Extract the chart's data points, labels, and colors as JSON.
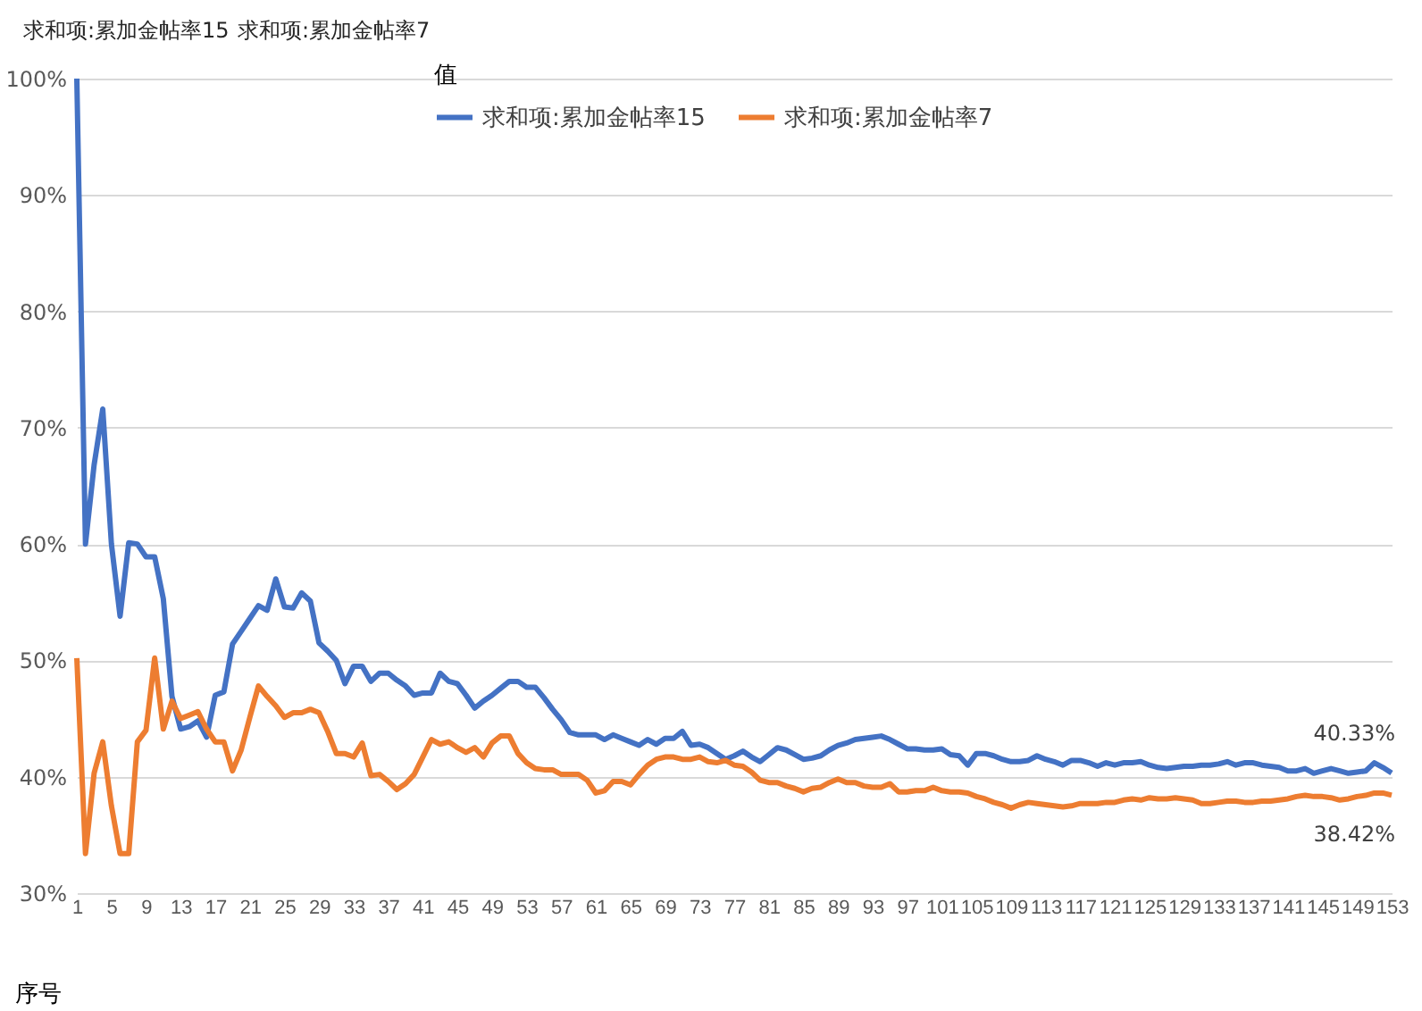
{
  "chart_data": {
    "type": "line",
    "annotations": [
      "求和项:累加金帖率15",
      "求和项:累加金帖率7"
    ],
    "xlabel": "序号",
    "legend_title": "值",
    "legend": "top",
    "grid": "y",
    "line_style": "solid",
    "ylim": [
      30,
      100
    ],
    "yticks": [
      {
        "value": 30,
        "label": "30%"
      },
      {
        "value": 40,
        "label": "40%"
      },
      {
        "value": 50,
        "label": "50%"
      },
      {
        "value": 60,
        "label": "60%"
      },
      {
        "value": 70,
        "label": "70%"
      },
      {
        "value": 80,
        "label": "80%"
      },
      {
        "value": 90,
        "label": "90%"
      },
      {
        "value": 100,
        "label": "100%"
      }
    ],
    "categories": [
      "1",
      null,
      null,
      null,
      "5",
      null,
      null,
      null,
      "9",
      null,
      null,
      null,
      "13",
      null,
      null,
      null,
      "17",
      null,
      null,
      null,
      "21",
      null,
      null,
      null,
      "25",
      null,
      null,
      null,
      "29",
      null,
      null,
      null,
      "33",
      null,
      null,
      null,
      "37",
      null,
      null,
      null,
      "41",
      null,
      null,
      null,
      "45",
      null,
      null,
      null,
      "49",
      null,
      null,
      null,
      "53",
      null,
      null,
      null,
      "57",
      null,
      null,
      null,
      "61",
      null,
      null,
      null,
      "65",
      null,
      null,
      null,
      "69",
      null,
      null,
      null,
      "73",
      null,
      null,
      null,
      "77",
      null,
      null,
      null,
      "81",
      null,
      null,
      null,
      "85",
      null,
      null,
      null,
      "89",
      null,
      null,
      null,
      "93",
      null,
      null,
      null,
      "97",
      null,
      null,
      null,
      "101",
      null,
      null,
      null,
      "105",
      null,
      null,
      null,
      "109",
      null,
      null,
      null,
      "113",
      null,
      null,
      null,
      "117",
      null,
      null,
      null,
      "121",
      null,
      null,
      null,
      "125",
      null,
      null,
      null,
      "129",
      null,
      null,
      null,
      "133",
      null,
      null,
      null,
      "137",
      null,
      null,
      null,
      "141",
      null,
      null,
      null,
      "145",
      null,
      null,
      null,
      "149",
      null,
      null,
      null,
      "153"
    ],
    "series": [
      {
        "name": "求和项:累加金帖率15",
        "color": "#4472c4",
        "values": [
          100,
          60,
          66.8,
          71.6,
          60,
          53.8,
          60.1,
          60,
          58.9,
          58.9,
          55.3,
          46.9,
          44.1,
          44.3,
          44.8,
          43.4,
          47,
          47.3,
          51.4,
          52.5,
          53.6,
          54.7,
          54.3,
          57,
          54.6,
          54.5,
          55.8,
          55.1,
          51.5,
          50.8,
          50,
          48,
          49.5,
          49.5,
          48.2,
          48.9,
          48.9,
          48.3,
          47.8,
          47,
          47.2,
          47.2,
          48.9,
          48.2,
          48,
          47,
          45.9,
          46.5,
          47,
          47.6,
          48.2,
          48.2,
          47.7,
          47.7,
          46.8,
          45.8,
          44.9,
          43.8,
          43.6,
          43.6,
          43.6,
          43.2,
          43.6,
          43.3,
          43,
          42.7,
          43.2,
          42.8,
          43.3,
          43.3,
          43.9,
          42.7,
          42.8,
          42.5,
          42,
          41.5,
          41.8,
          42.2,
          41.7,
          41.3,
          41.9,
          42.5,
          42.3,
          41.9,
          41.5,
          41.6,
          41.8,
          42.3,
          42.7,
          42.9,
          43.2,
          43.3,
          43.4,
          43.5,
          43.2,
          42.8,
          42.4,
          42.4,
          42.3,
          42.3,
          42.4,
          41.9,
          41.8,
          41,
          42,
          42,
          41.8,
          41.5,
          41.3,
          41.3,
          41.4,
          41.8,
          41.5,
          41.3,
          41,
          41.4,
          41.4,
          41.2,
          40.9,
          41.2,
          41,
          41.2,
          41.2,
          41.3,
          41,
          40.8,
          40.7,
          40.8,
          40.9,
          40.9,
          41,
          41,
          41.1,
          41.3,
          41,
          41.2,
          41.2,
          41,
          40.9,
          40.8,
          40.5,
          40.5,
          40.7,
          40.3,
          40.5,
          40.7,
          40.5,
          40.3,
          40.4,
          40.5,
          41.2,
          40.8,
          40.33
        ],
        "value_labels": [
          null,
          null,
          null,
          null,
          null,
          null,
          null,
          null,
          null,
          null,
          null,
          null,
          null,
          null,
          null,
          null,
          null,
          null,
          null,
          null,
          null,
          null,
          null,
          null,
          null,
          null,
          null,
          null,
          null,
          null,
          null,
          null,
          null,
          null,
          null,
          null,
          null,
          null,
          null,
          null,
          null,
          null,
          null,
          null,
          null,
          null,
          null,
          null,
          null,
          null,
          null,
          null,
          null,
          null,
          null,
          null,
          null,
          null,
          null,
          null,
          null,
          null,
          null,
          null,
          null,
          null,
          null,
          null,
          null,
          null,
          null,
          null,
          null,
          null,
          null,
          null,
          null,
          null,
          null,
          null,
          null,
          null,
          null,
          null,
          null,
          null,
          null,
          null,
          null,
          null,
          null,
          null,
          null,
          null,
          null,
          null,
          null,
          null,
          null,
          null,
          null,
          null,
          null,
          null,
          null,
          null,
          null,
          null,
          null,
          null,
          null,
          null,
          null,
          null,
          null,
          null,
          null,
          null,
          null,
          null,
          null,
          null,
          null,
          null,
          null,
          null,
          null,
          null,
          null,
          null,
          null,
          null,
          null,
          null,
          null,
          null,
          null,
          null,
          null,
          null,
          null,
          null,
          null,
          null,
          null,
          null,
          null,
          null,
          null,
          null,
          null,
          null,
          "40.33%"
        ]
      },
      {
        "name": "求和项:累加金帖率7",
        "color": "#ed7d31",
        "values": [
          50.2,
          33.4,
          40.3,
          43,
          37.5,
          33.4,
          33.4,
          43,
          44,
          50.2,
          44.1,
          46.5,
          45,
          45.3,
          45.6,
          44.1,
          43,
          43,
          40.5,
          42.3,
          45.1,
          47.8,
          46.9,
          46.1,
          45.1,
          45.5,
          45.5,
          45.8,
          45.5,
          43.9,
          42,
          42,
          41.7,
          42.9,
          40.1,
          40.2,
          39.6,
          38.9,
          39.4,
          40.2,
          41.7,
          43.2,
          42.8,
          43,
          42.5,
          42.1,
          42.5,
          41.7,
          42.9,
          43.5,
          43.5,
          42,
          41.2,
          40.7,
          40.6,
          40.6,
          40.2,
          40.2,
          40.2,
          39.7,
          38.6,
          38.8,
          39.6,
          39.6,
          39.3,
          40.2,
          41,
          41.5,
          41.7,
          41.7,
          41.5,
          41.5,
          41.7,
          41.3,
          41.2,
          41.4,
          41,
          40.9,
          40.4,
          39.7,
          39.5,
          39.5,
          39.2,
          39,
          38.7,
          39,
          39.1,
          39.5,
          39.8,
          39.5,
          39.5,
          39.2,
          39.1,
          39.1,
          39.4,
          38.7,
          38.7,
          38.8,
          38.8,
          39.1,
          38.8,
          38.7,
          38.7,
          38.6,
          38.3,
          38.1,
          37.8,
          37.6,
          37.3,
          37.6,
          37.8,
          37.7,
          37.6,
          37.5,
          37.4,
          37.5,
          37.7,
          37.7,
          37.7,
          37.8,
          37.8,
          38,
          38.1,
          38,
          38.2,
          38.1,
          38.1,
          38.2,
          38.1,
          38,
          37.7,
          37.7,
          37.8,
          37.9,
          37.9,
          37.8,
          37.8,
          37.9,
          37.9,
          38,
          38.1,
          38.3,
          38.4,
          38.3,
          38.3,
          38.2,
          38,
          38.1,
          38.3,
          38.4,
          38.6,
          38.6,
          38.42
        ],
        "value_labels": [
          null,
          null,
          null,
          null,
          null,
          null,
          null,
          null,
          null,
          null,
          null,
          null,
          null,
          null,
          null,
          null,
          null,
          null,
          null,
          null,
          null,
          null,
          null,
          null,
          null,
          null,
          null,
          null,
          null,
          null,
          null,
          null,
          null,
          null,
          null,
          null,
          null,
          null,
          null,
          null,
          null,
          null,
          null,
          null,
          null,
          null,
          null,
          null,
          null,
          null,
          null,
          null,
          null,
          null,
          null,
          null,
          null,
          null,
          null,
          null,
          null,
          null,
          null,
          null,
          null,
          null,
          null,
          null,
          null,
          null,
          null,
          null,
          null,
          null,
          null,
          null,
          null,
          null,
          null,
          null,
          null,
          null,
          null,
          null,
          null,
          null,
          null,
          null,
          null,
          null,
          null,
          null,
          null,
          null,
          null,
          null,
          null,
          null,
          null,
          null,
          null,
          null,
          null,
          null,
          null,
          null,
          null,
          null,
          null,
          null,
          null,
          null,
          null,
          null,
          null,
          null,
          null,
          null,
          null,
          null,
          null,
          null,
          null,
          null,
          null,
          null,
          null,
          null,
          null,
          null,
          null,
          null,
          null,
          null,
          null,
          null,
          null,
          null,
          null,
          null,
          null,
          null,
          null,
          null,
          null,
          null,
          null,
          null,
          null,
          null,
          null,
          null,
          "38.42%"
        ]
      }
    ]
  }
}
